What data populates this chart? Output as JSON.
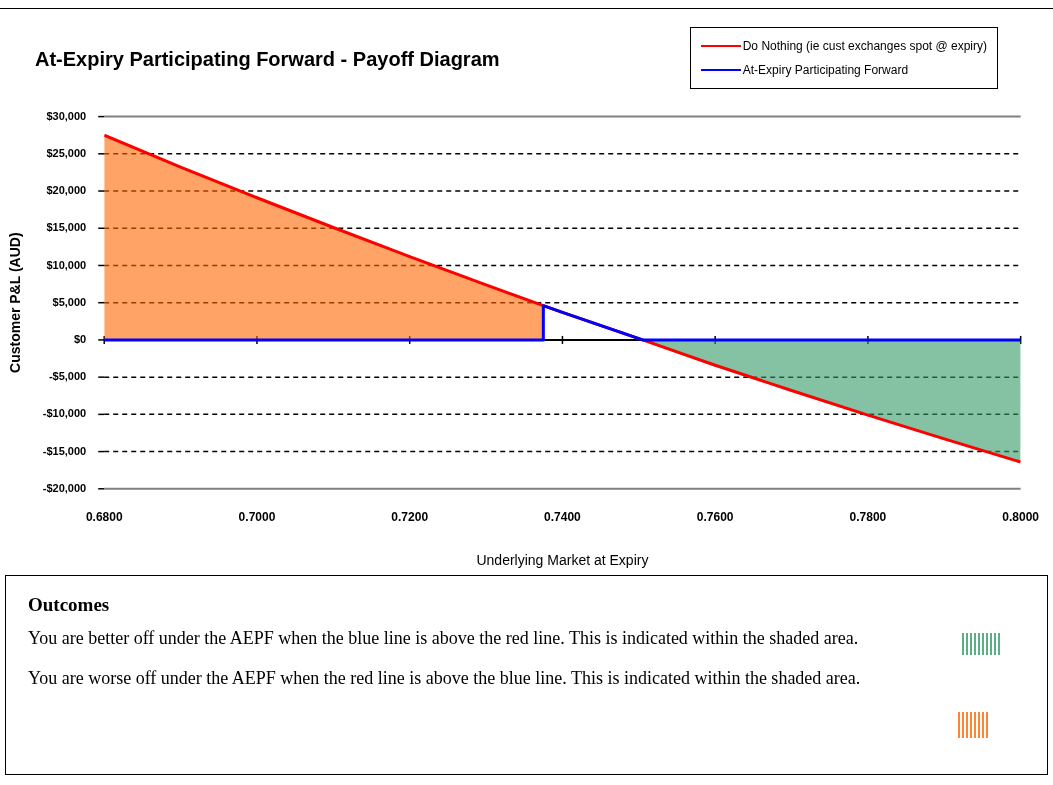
{
  "chart_data": {
    "type": "line",
    "title": "At-Expiry Participating Forward - Payoff Diagram",
    "xlabel": "Underlying Market at Expiry",
    "ylabel": "Customer P&L (AUD)",
    "series": [
      {
        "name": "Do Nothing (ie cust exchanges spot @ expiry)",
        "color": "#ff0000",
        "x": [
          0.68,
          0.69,
          0.7,
          0.71,
          0.72,
          0.73,
          0.7375,
          0.74,
          0.7505,
          0.76,
          0.77,
          0.78,
          0.79,
          0.8
        ],
        "values": [
          27500,
          23200,
          19100,
          15100,
          11200,
          7400,
          4600,
          3700,
          0,
          -3400,
          -6800,
          -10100,
          -13300,
          -16400
        ]
      },
      {
        "name": "At-Expiry Participating Forward",
        "color": "#0000ff",
        "x": [
          0.68,
          0.7375,
          0.7375,
          0.74,
          0.7505,
          0.8
        ],
        "values": [
          0,
          0,
          4600,
          3700,
          0,
          0
        ]
      },
      {
        "type": "area",
        "color": "#ff6600",
        "x": [
          0.68,
          0.69,
          0.7,
          0.71,
          0.72,
          0.73,
          0.7375
        ],
        "values": [
          27500,
          23200,
          19100,
          15100,
          11200,
          7400,
          4600
        ]
      },
      {
        "type": "area",
        "color": "#339966",
        "x": [
          0.7505,
          0.76,
          0.77,
          0.78,
          0.79,
          0.8
        ],
        "values": [
          0,
          -3400,
          -6800,
          -10100,
          -13300,
          -16400
        ]
      }
    ],
    "xlim": [
      0.68,
      0.8
    ],
    "xticks": [
      {
        "value": 0.68,
        "label": "0.6800"
      },
      {
        "value": 0.7,
        "label": "0.7000"
      },
      {
        "value": 0.72,
        "label": "0.7200"
      },
      {
        "value": 0.74,
        "label": "0.7400"
      },
      {
        "value": 0.76,
        "label": "0.7600"
      },
      {
        "value": 0.78,
        "label": "0.7800"
      },
      {
        "value": 0.8,
        "label": "0.8000"
      }
    ],
    "ylim": [
      -20000,
      30000
    ],
    "yticks": [
      {
        "value": -20000,
        "label": "-$20,000"
      },
      {
        "value": -15000,
        "label": "-$15,000"
      },
      {
        "value": -10000,
        "label": "-$10,000"
      },
      {
        "value": -5000,
        "label": "-$5,000"
      },
      {
        "value": 0,
        "label": "$0"
      },
      {
        "value": 5000,
        "label": "$5,000"
      },
      {
        "value": 10000,
        "label": "$10,000"
      },
      {
        "value": 15000,
        "label": "$15,000"
      },
      {
        "value": 20000,
        "label": "$20,000"
      },
      {
        "value": 25000,
        "label": "$25,000"
      },
      {
        "value": 30000,
        "label": "$30,000"
      }
    ],
    "grid": "y",
    "legend": "top right",
    "marker": "none",
    "line_style": "solid",
    "annotations": [
      "Outcomes",
      "You are better off under the AEPF when the blue line is above the red line. This is indicated within the shaded area.",
      "You are worse off under the AEPF when the red line is above the blue line. This is indicated within the shaded area."
    ]
  }
}
